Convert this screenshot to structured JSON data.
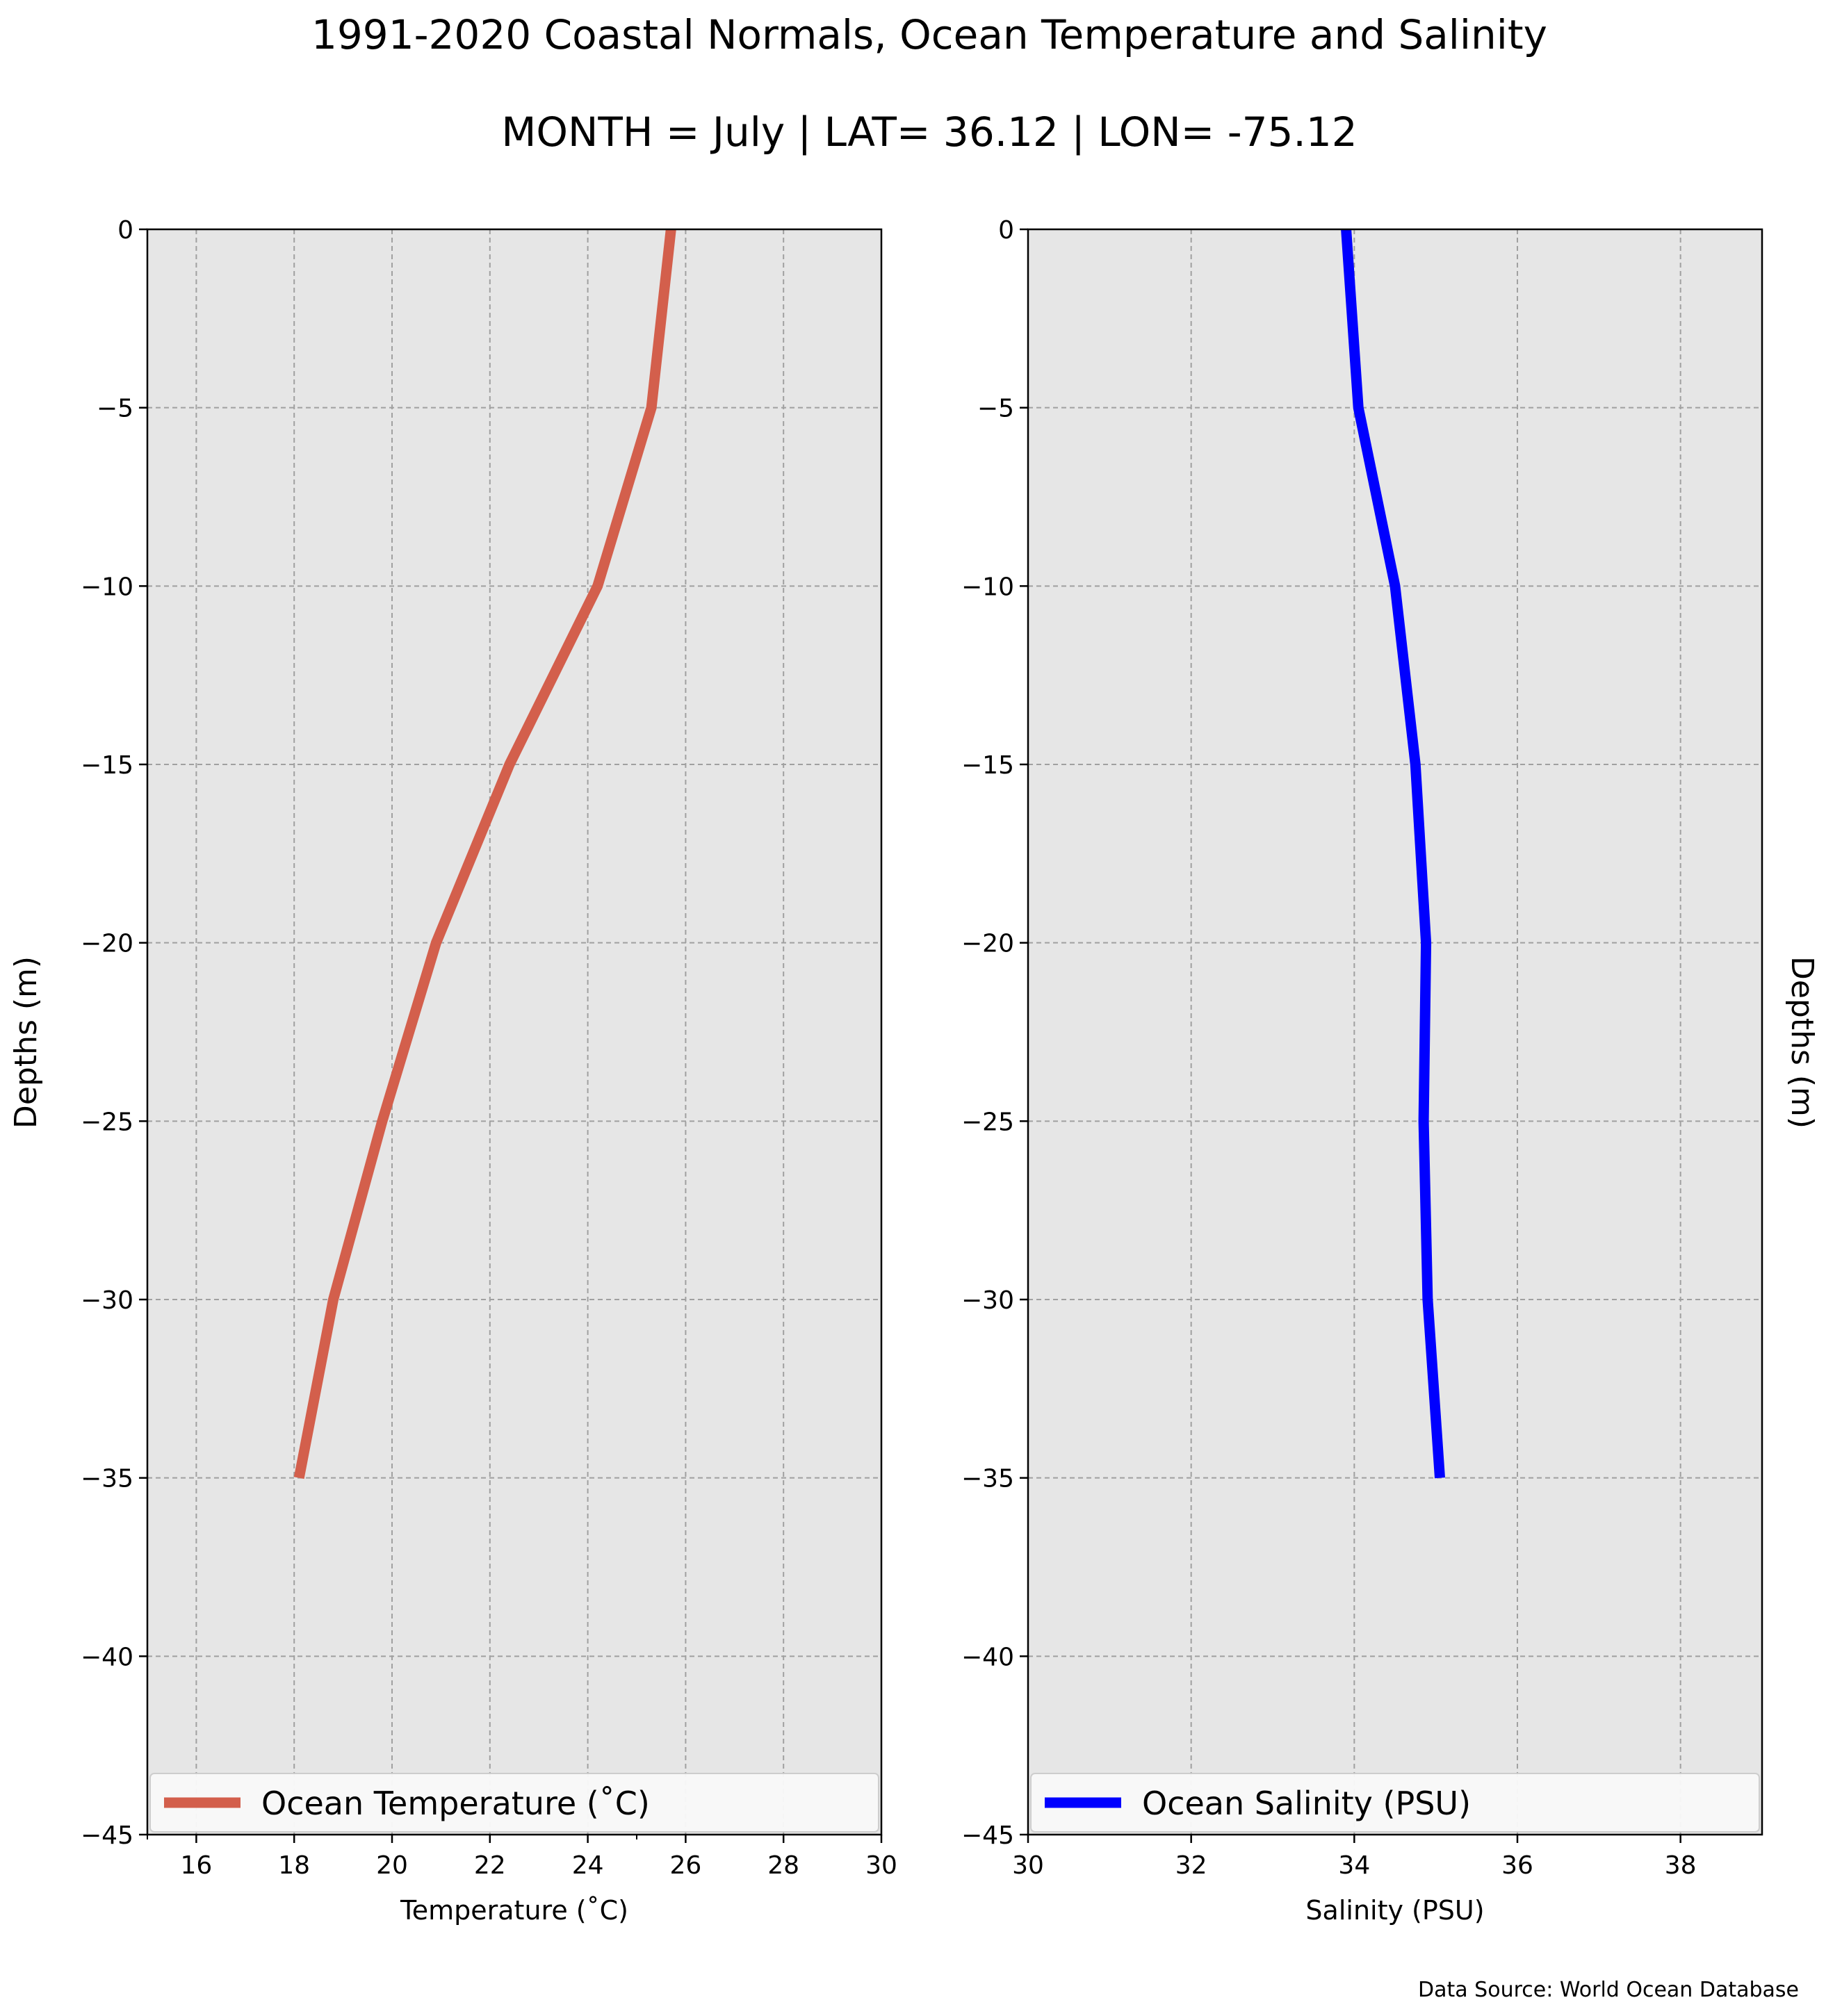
{
  "title": "1991-2020 Coastal Normals, Ocean Temperature and Salinity",
  "subtitle": "MONTH = July | LAT= 36.12 | LON= -75.12",
  "source_note": "Data Source: World Ocean Database",
  "colors": {
    "temperature": "#d35f4c",
    "salinity": "#0000ff",
    "plot_background": "#e6e6e6",
    "grid": "#a0a0a0"
  },
  "chart_data": [
    {
      "type": "line",
      "name": "temperature",
      "xlabel": "Temperature ($^\\circ$C)",
      "xlabel_display": "Temperature (˚C)",
      "ylabel": "Depths (m)",
      "ylabel_position": "left",
      "xlim": [
        15,
        30
      ],
      "ylim": [
        -45,
        0
      ],
      "x_ticks": [
        16,
        18,
        20,
        22,
        24,
        26,
        28,
        30
      ],
      "x_minor_ticks": [
        15,
        25
      ],
      "y_ticks": [
        0,
        -5,
        -10,
        -15,
        -20,
        -25,
        -30,
        -35,
        -40,
        -45
      ],
      "grid": true,
      "legend_position": "lower-center",
      "series": [
        {
          "name": "Ocean Temperature (˚C)",
          "color": "#d35f4c",
          "x": [
            25.7,
            25.3,
            24.2,
            22.4,
            20.9,
            19.8,
            18.8,
            18.1
          ],
          "y": [
            0,
            -5,
            -10,
            -15,
            -20,
            -25,
            -30,
            -35
          ]
        }
      ]
    },
    {
      "type": "line",
      "name": "salinity",
      "xlabel": "Salinity (PSU)",
      "ylabel": "Depths (m)",
      "ylabel_position": "right",
      "xlim": [
        30,
        39
      ],
      "ylim": [
        -45,
        0
      ],
      "x_ticks": [
        30,
        32,
        34,
        36,
        38
      ],
      "y_ticks": [
        0,
        -5,
        -10,
        -15,
        -20,
        -25,
        -30,
        -35,
        -40,
        -45
      ],
      "grid": true,
      "legend_position": "lower-center",
      "series": [
        {
          "name": "Ocean Salinity (PSU)",
          "color": "#0000ff",
          "x": [
            33.9,
            34.05,
            34.5,
            34.75,
            34.88,
            34.85,
            34.9,
            35.05
          ],
          "y": [
            0,
            -5,
            -10,
            -15,
            -20,
            -25,
            -30,
            -35
          ]
        }
      ]
    }
  ]
}
